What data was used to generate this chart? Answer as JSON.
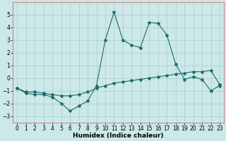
{
  "title": "",
  "xlabel": "Humidex (Indice chaleur)",
  "ylabel": "",
  "background_color": "#cce8e8",
  "grid_color": "#aacccc",
  "line_color": "#1a6b6b",
  "x_main": [
    0,
    1,
    2,
    3,
    4,
    5,
    6,
    7,
    8,
    9,
    10,
    11,
    12,
    13,
    14,
    15,
    16,
    17,
    18,
    19,
    20,
    21,
    22,
    23
  ],
  "y_main": [
    -0.8,
    -1.2,
    -1.3,
    -1.3,
    -1.5,
    -2.0,
    -2.6,
    -2.2,
    -1.8,
    -0.6,
    3.0,
    5.2,
    3.0,
    2.6,
    2.4,
    4.4,
    4.3,
    3.4,
    1.1,
    -0.1,
    0.1,
    -0.1,
    -1.0,
    -0.6
  ],
  "x_flat": [
    0,
    1,
    2,
    3,
    4,
    5,
    6,
    7,
    8,
    9,
    10,
    11,
    12,
    13,
    14,
    15,
    16,
    17,
    18,
    19,
    20,
    21,
    22,
    23
  ],
  "y_flat": [
    -0.8,
    -1.1,
    -1.1,
    -1.2,
    -1.3,
    -1.4,
    -1.4,
    -1.3,
    -1.1,
    -0.8,
    -0.6,
    -0.4,
    -0.3,
    -0.2,
    -0.1,
    0.0,
    0.1,
    0.2,
    0.3,
    0.4,
    0.5,
    0.5,
    0.6,
    -0.5
  ],
  "ylim": [
    -3.5,
    6.0
  ],
  "xlim": [
    -0.5,
    23.5
  ],
  "yticks": [
    -3,
    -2,
    -1,
    0,
    1,
    2,
    3,
    4,
    5
  ],
  "xticks": [
    0,
    1,
    2,
    3,
    4,
    5,
    6,
    7,
    8,
    9,
    10,
    11,
    12,
    13,
    14,
    15,
    16,
    17,
    18,
    19,
    20,
    21,
    22,
    23
  ],
  "marker": "*",
  "marker_size": 3,
  "linewidth": 0.8,
  "font_size_label": 6.5,
  "font_size_tick": 5.5
}
